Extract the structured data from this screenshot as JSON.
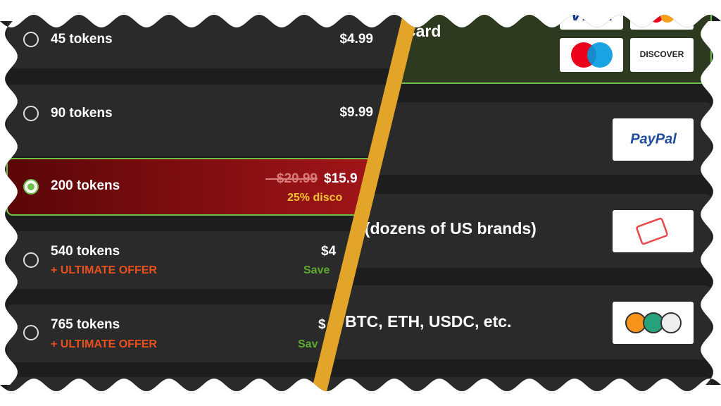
{
  "token_list": {
    "rows": [
      {
        "name": "45 tokens",
        "price": "$4.99"
      },
      {
        "name": "90 tokens",
        "price": "$9.99"
      },
      {
        "name": "200 tokens",
        "old_price": "$20.99",
        "price": "$15.9",
        "discount": "25% disco"
      },
      {
        "name": "540 tokens",
        "offer": "+ ULTIMATE OFFER",
        "price": "$4",
        "save": "Save"
      },
      {
        "name": "765 tokens",
        "offer": "+ ULTIMATE OFFER",
        "price": "$",
        "save": "Sav"
      }
    ]
  },
  "payment": {
    "methods": [
      {
        "label": "Card",
        "logos": [
          "VISA",
          "DISCOVER"
        ]
      },
      {
        "logos": [
          "PayPal"
        ]
      },
      {
        "label": "l (dozens of US brands)"
      },
      {
        "label": "BTC, ETH, USDC, etc."
      }
    ]
  }
}
